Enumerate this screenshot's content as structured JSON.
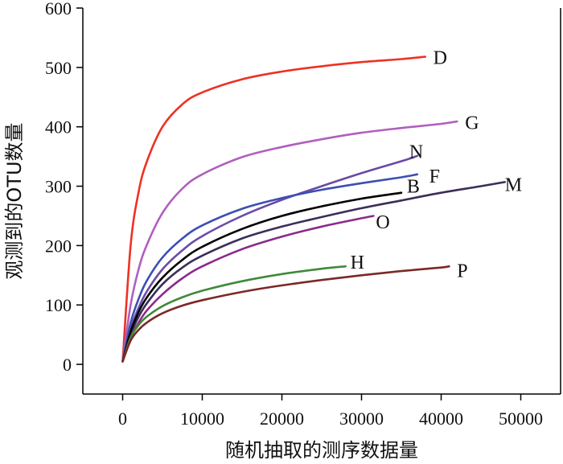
{
  "chart_data": {
    "type": "line",
    "title": "",
    "xlabel": "随机抽取的测序数据量",
    "ylabel": "观测到的OTU数量",
    "xlim": [
      -5000,
      55000
    ],
    "ylim": [
      -50,
      600
    ],
    "xticks": [
      0,
      10000,
      20000,
      30000,
      40000,
      50000
    ],
    "yticks": [
      0,
      100,
      200,
      300,
      400,
      500,
      600
    ],
    "grid": false,
    "legend": "none (series labeled at line ends)",
    "series": [
      {
        "name": "D",
        "color": "#ee3124",
        "points": [
          [
            0,
            5
          ],
          [
            1000,
            200
          ],
          [
            2000,
            290
          ],
          [
            3000,
            340
          ],
          [
            5000,
            400
          ],
          [
            7500,
            438
          ],
          [
            10000,
            458
          ],
          [
            15000,
            480
          ],
          [
            20000,
            493
          ],
          [
            25000,
            502
          ],
          [
            30000,
            509
          ],
          [
            35000,
            514
          ],
          [
            38000,
            518
          ]
        ]
      },
      {
        "name": "G",
        "color": "#b05fbe",
        "points": [
          [
            0,
            5
          ],
          [
            1000,
            100
          ],
          [
            2000,
            160
          ],
          [
            3000,
            200
          ],
          [
            5000,
            255
          ],
          [
            7500,
            296
          ],
          [
            10000,
            320
          ],
          [
            15000,
            349
          ],
          [
            20000,
            366
          ],
          [
            25000,
            379
          ],
          [
            30000,
            390
          ],
          [
            35000,
            398
          ],
          [
            40000,
            405
          ],
          [
            42000,
            409
          ]
        ]
      },
      {
        "name": "N",
        "color": "#6a4aa8",
        "points": [
          [
            0,
            5
          ],
          [
            1000,
            60
          ],
          [
            2000,
            95
          ],
          [
            3000,
            122
          ],
          [
            5000,
            160
          ],
          [
            7500,
            192
          ],
          [
            10000,
            216
          ],
          [
            15000,
            250
          ],
          [
            20000,
            277
          ],
          [
            25000,
            300
          ],
          [
            30000,
            322
          ],
          [
            35000,
            342
          ],
          [
            37000,
            351
          ]
        ]
      },
      {
        "name": "F",
        "color": "#3c4fb3",
        "points": [
          [
            0,
            5
          ],
          [
            1000,
            70
          ],
          [
            2000,
            110
          ],
          [
            3000,
            140
          ],
          [
            5000,
            180
          ],
          [
            7500,
            212
          ],
          [
            10000,
            234
          ],
          [
            15000,
            262
          ],
          [
            20000,
            280
          ],
          [
            25000,
            294
          ],
          [
            30000,
            305
          ],
          [
            35000,
            315
          ],
          [
            37000,
            320
          ]
        ]
      },
      {
        "name": "M",
        "color": "#3b2d5a",
        "points": [
          [
            0,
            5
          ],
          [
            1000,
            50
          ],
          [
            2000,
            80
          ],
          [
            3000,
            102
          ],
          [
            5000,
            135
          ],
          [
            7500,
            163
          ],
          [
            10000,
            183
          ],
          [
            15000,
            212
          ],
          [
            20000,
            232
          ],
          [
            25000,
            248
          ],
          [
            30000,
            263
          ],
          [
            35000,
            276
          ],
          [
            40000,
            289
          ],
          [
            45000,
            300
          ],
          [
            48000,
            307
          ]
        ]
      },
      {
        "name": "B",
        "color": "#000000",
        "points": [
          [
            0,
            5
          ],
          [
            1000,
            55
          ],
          [
            2000,
            88
          ],
          [
            3000,
            112
          ],
          [
            5000,
            146
          ],
          [
            7500,
            176
          ],
          [
            10000,
            198
          ],
          [
            15000,
            228
          ],
          [
            20000,
            250
          ],
          [
            25000,
            266
          ],
          [
            30000,
            279
          ],
          [
            35000,
            289
          ]
        ]
      },
      {
        "name": "O",
        "color": "#8b2a8c",
        "points": [
          [
            0,
            5
          ],
          [
            1000,
            45
          ],
          [
            2000,
            70
          ],
          [
            3000,
            90
          ],
          [
            5000,
            118
          ],
          [
            7500,
            145
          ],
          [
            10000,
            165
          ],
          [
            15000,
            194
          ],
          [
            20000,
            215
          ],
          [
            25000,
            232
          ],
          [
            30000,
            246
          ],
          [
            31500,
            250
          ]
        ]
      },
      {
        "name": "H",
        "color": "#3f8a3a",
        "points": [
          [
            0,
            5
          ],
          [
            1000,
            45
          ],
          [
            2000,
            66
          ],
          [
            3000,
            80
          ],
          [
            5000,
            98
          ],
          [
            7500,
            113
          ],
          [
            10000,
            124
          ],
          [
            15000,
            140
          ],
          [
            20000,
            152
          ],
          [
            25000,
            161
          ],
          [
            28000,
            165
          ]
        ]
      },
      {
        "name": "P",
        "color": "#7a2a26",
        "points": [
          [
            0,
            5
          ],
          [
            1000,
            40
          ],
          [
            2000,
            58
          ],
          [
            3000,
            70
          ],
          [
            5000,
            86
          ],
          [
            7500,
            99
          ],
          [
            10000,
            108
          ],
          [
            15000,
            122
          ],
          [
            20000,
            133
          ],
          [
            25000,
            142
          ],
          [
            30000,
            150
          ],
          [
            35000,
            157
          ],
          [
            40000,
            163
          ],
          [
            41000,
            165
          ]
        ]
      }
    ],
    "labels": [
      {
        "series": "D",
        "text": "D",
        "x": 39000,
        "y": 517
      },
      {
        "series": "G",
        "text": "G",
        "x": 43000,
        "y": 407
      },
      {
        "series": "N",
        "text": "N",
        "x": 36000,
        "y": 358
      },
      {
        "series": "F",
        "text": "F",
        "x": 38500,
        "y": 317
      },
      {
        "series": "M",
        "text": "M",
        "x": 48000,
        "y": 303
      },
      {
        "series": "B",
        "text": "B",
        "x": 35700,
        "y": 300
      },
      {
        "series": "O",
        "text": "O",
        "x": 31800,
        "y": 240
      },
      {
        "series": "H",
        "text": "H",
        "x": 28600,
        "y": 172
      },
      {
        "series": "P",
        "text": "P",
        "x": 42000,
        "y": 158
      }
    ]
  }
}
